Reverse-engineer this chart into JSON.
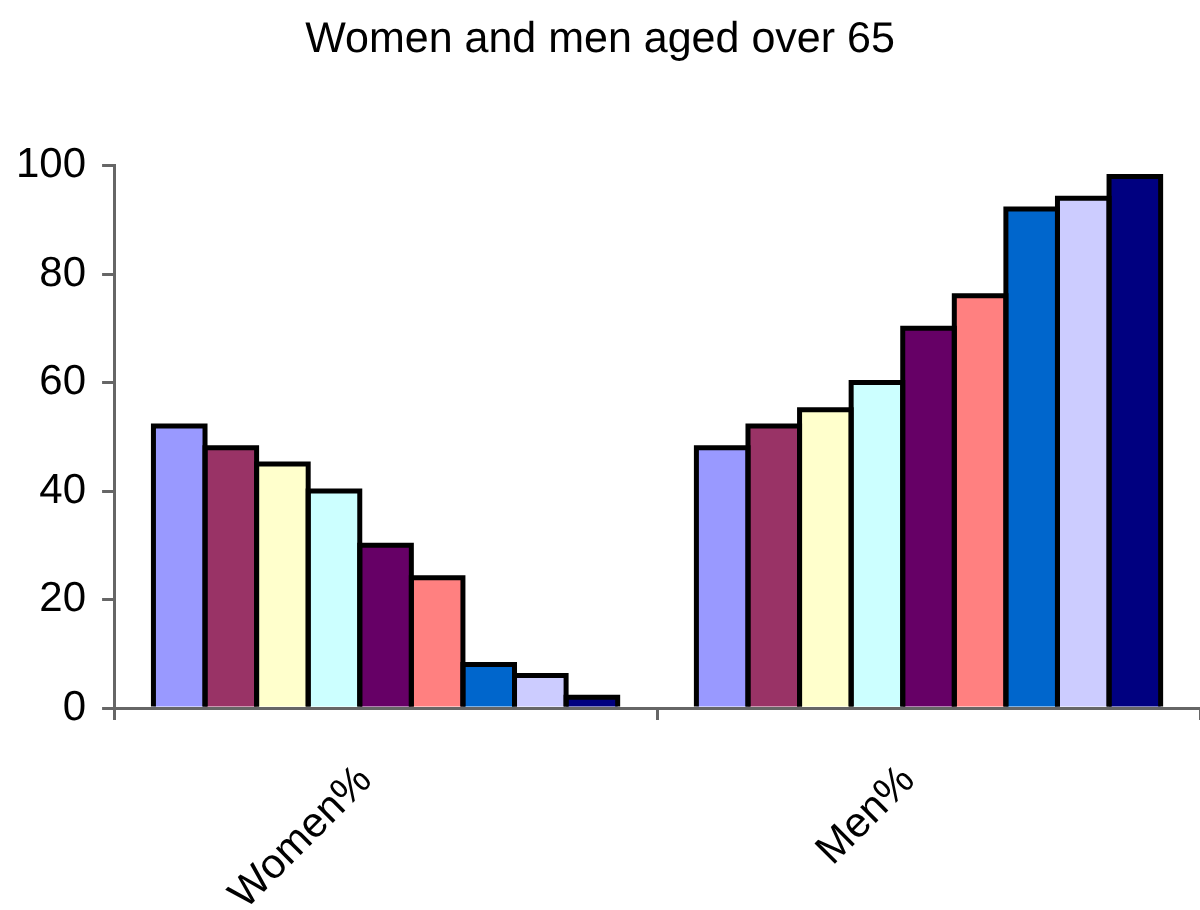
{
  "chart_data": {
    "type": "bar",
    "title": "Women and men aged over 65",
    "categories": [
      "Women%",
      "Men%"
    ],
    "series": [
      {
        "color": "#9999ff",
        "values": [
          52,
          48
        ]
      },
      {
        "color": "#993366",
        "values": [
          48,
          52
        ]
      },
      {
        "color": "#ffffcc",
        "values": [
          45,
          55
        ]
      },
      {
        "color": "#ccffff",
        "values": [
          40,
          60
        ]
      },
      {
        "color": "#660066",
        "values": [
          30,
          70
        ]
      },
      {
        "color": "#ff8080",
        "values": [
          24,
          76
        ]
      },
      {
        "color": "#0066cc",
        "values": [
          8,
          92
        ]
      },
      {
        "color": "#ccccff",
        "values": [
          6,
          94
        ]
      },
      {
        "color": "#000080",
        "values": [
          2,
          98
        ]
      }
    ],
    "ylim": [
      0,
      100
    ],
    "yticks": [
      0,
      20,
      40,
      60,
      80,
      100
    ],
    "grid": false,
    "legend": false
  }
}
